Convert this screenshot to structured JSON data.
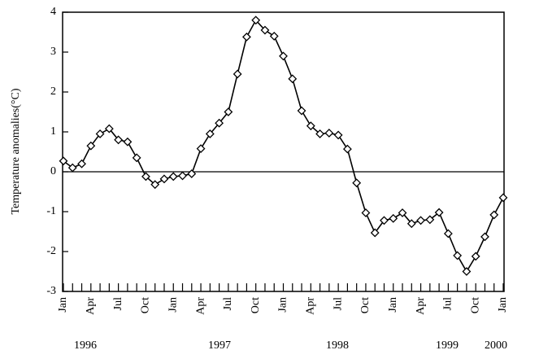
{
  "chart_data": {
    "type": "line",
    "y_label": "Temperature anomalies(°C)",
    "categories": [
      "Jan",
      null,
      null,
      "Apr",
      null,
      null,
      "Jul",
      null,
      null,
      "Oct",
      null,
      null,
      "Jan",
      null,
      null,
      "Apr",
      null,
      null,
      "Jul",
      null,
      null,
      "Oct",
      null,
      null,
      "Jan",
      null,
      null,
      "Apr",
      null,
      null,
      "Jul",
      null,
      null,
      "Oct",
      null,
      null,
      "Jan",
      null,
      null,
      "Apr",
      null,
      null,
      "Jul",
      null,
      null,
      "Oct",
      null,
      null,
      "Jan"
    ],
    "years": [
      "1996",
      "1997",
      "1998",
      "1999",
      "2000"
    ],
    "series": [
      {
        "name": "Temperature anomaly",
        "color": "#000000",
        "values": [
          0.27,
          0.1,
          0.2,
          0.65,
          0.95,
          1.08,
          0.8,
          0.75,
          0.35,
          -0.12,
          -0.32,
          -0.18,
          -0.12,
          -0.1,
          -0.05,
          0.58,
          0.95,
          1.22,
          1.5,
          2.45,
          3.38,
          3.8,
          3.55,
          3.4,
          2.9,
          2.33,
          1.53,
          1.15,
          0.95,
          0.97,
          0.92,
          0.57,
          -0.28,
          -1.03,
          -1.53,
          -1.22,
          -1.17,
          -1.03,
          -1.3,
          -1.22,
          -1.2,
          -1.02,
          -1.55,
          -2.1,
          -2.5,
          -2.12,
          -1.63,
          -1.08,
          -0.65
        ]
      }
    ],
    "ylim": [
      -3,
      4
    ],
    "yticks": [
      -3,
      -2,
      -1,
      0,
      1,
      2,
      3,
      4
    ],
    "reference_line": 0,
    "grid": false
  }
}
